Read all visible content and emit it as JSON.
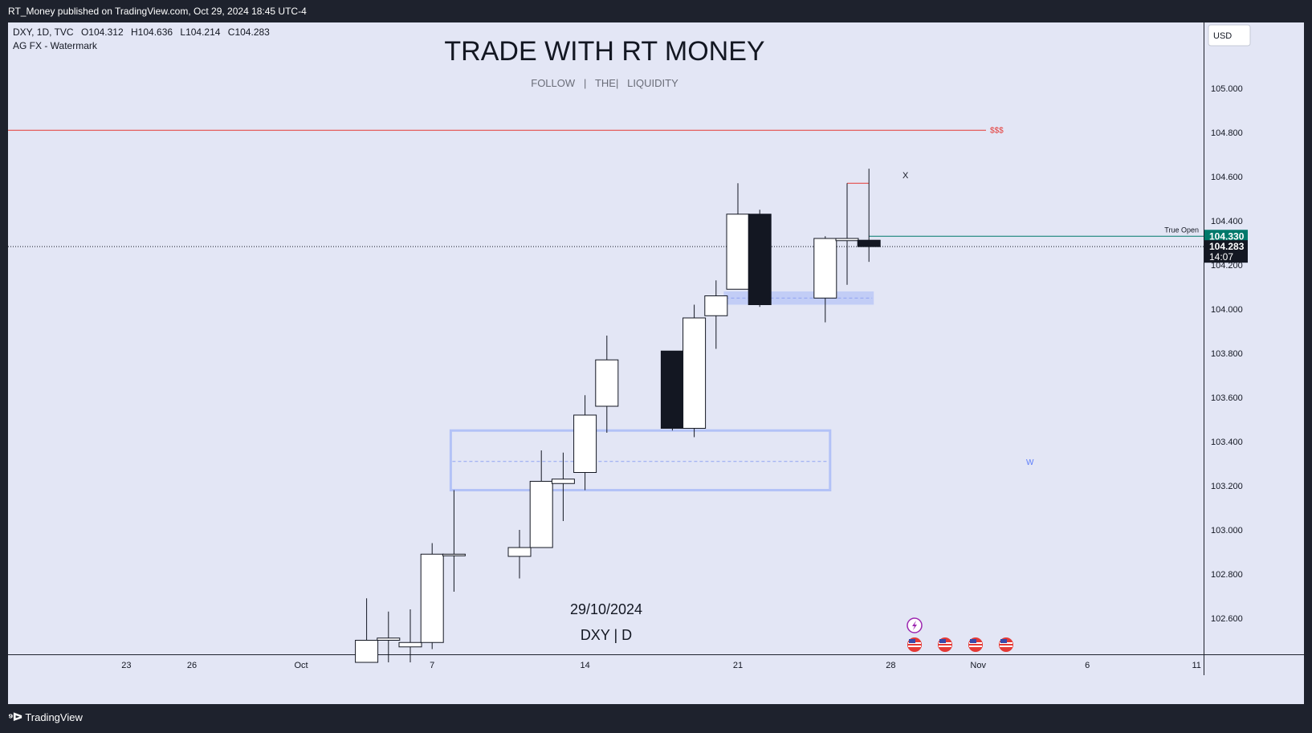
{
  "header": {
    "published": "RT_Money published on TradingView.com, Oct 29, 2024 18:45 UTC-4"
  },
  "legend": {
    "symbol": "DXY, 1D, TVC",
    "o": "O104.312",
    "h": "H104.636",
    "l": "L104.214",
    "c": "C104.283",
    "indicator": "AG FX - Watermark"
  },
  "watermark": {
    "title": "TRADE WITH RT MONEY",
    "subtitle": "FOLLOW   |   THE|   LIQUIDITY",
    "date": "29/10/2024",
    "symbol": "DXY | D"
  },
  "axis": {
    "currency": "USD"
  },
  "labels": {
    "liquidity": "$$$",
    "x_mark": "X",
    "w_mark": "W",
    "true_open": "True Open",
    "true_open_price": "104.330",
    "last_price": "104.283",
    "countdown": "14:07"
  },
  "footer": {
    "brand": "TradingView"
  },
  "colors": {
    "background": "#e3e6f5",
    "frame": "#1e222d",
    "liquidity_line": "#e53935",
    "true_open": "#00796b",
    "zone": "#b3c2f7",
    "bear_candle": "#131722",
    "bull_candle": "#ffffff"
  },
  "chart_data": {
    "type": "candlestick",
    "symbol": "DXY",
    "interval": "1D",
    "price_ticks": [
      102.6,
      102.8,
      103.0,
      103.2,
      103.4,
      103.6,
      103.8,
      104.0,
      104.2,
      104.4,
      104.6,
      104.8,
      105.0
    ],
    "price_tick_labels": [
      "102.600",
      "102.800",
      "103.000",
      "103.200",
      "103.400",
      "103.600",
      "103.800",
      "104.000",
      "104.200",
      "104.400",
      "104.600",
      "104.800",
      "105.000"
    ],
    "time_ticks": [
      {
        "label": "23",
        "day": -8
      },
      {
        "label": "26",
        "day": -5
      },
      {
        "label": "Oct",
        "day": 0
      },
      {
        "label": "7",
        "day": 6
      },
      {
        "label": "14",
        "day": 13
      },
      {
        "label": "21",
        "day": 20
      },
      {
        "label": "28",
        "day": 27
      },
      {
        "label": "Nov",
        "day": 31
      },
      {
        "label": "6",
        "day": 36
      },
      {
        "label": "11",
        "day": 41
      }
    ],
    "candles": [
      {
        "day": 3,
        "o": 102.4,
        "h": 102.69,
        "l": 102.4,
        "c": 102.5
      },
      {
        "day": 4,
        "o": 102.5,
        "h": 102.63,
        "l": 102.4,
        "c": 102.51
      },
      {
        "day": 5,
        "o": 102.47,
        "h": 102.64,
        "l": 102.4,
        "c": 102.49
      },
      {
        "day": 6,
        "o": 102.49,
        "h": 102.94,
        "l": 102.46,
        "c": 102.89
      },
      {
        "day": 7,
        "o": 102.89,
        "h": 103.18,
        "l": 102.72,
        "c": 102.89
      },
      {
        "day": 10,
        "o": 102.88,
        "h": 103.0,
        "l": 102.78,
        "c": 102.92
      },
      {
        "day": 11,
        "o": 102.92,
        "h": 103.36,
        "l": 102.92,
        "c": 103.22
      },
      {
        "day": 12,
        "o": 103.21,
        "h": 103.35,
        "l": 103.04,
        "c": 103.23
      },
      {
        "day": 13,
        "o": 103.26,
        "h": 103.61,
        "l": 103.18,
        "c": 103.52
      },
      {
        "day": 14,
        "o": 103.56,
        "h": 103.88,
        "l": 103.44,
        "c": 103.77
      },
      {
        "day": 17,
        "o": 103.81,
        "h": 103.81,
        "l": 103.45,
        "c": 103.46
      },
      {
        "day": 18,
        "o": 103.46,
        "h": 104.02,
        "l": 103.42,
        "c": 103.96
      },
      {
        "day": 19,
        "o": 103.97,
        "h": 104.13,
        "l": 103.82,
        "c": 104.06
      },
      {
        "day": 20,
        "o": 104.09,
        "h": 104.57,
        "l": 104.09,
        "c": 104.43
      },
      {
        "day": 21,
        "o": 104.43,
        "h": 104.45,
        "l": 104.01,
        "c": 104.02
      },
      {
        "day": 24,
        "o": 104.05,
        "h": 104.33,
        "l": 103.94,
        "c": 104.32
      },
      {
        "day": 25,
        "o": 104.31,
        "h": 104.57,
        "l": 104.11,
        "c": 104.32
      },
      {
        "day": 26,
        "o": 104.312,
        "h": 104.636,
        "l": 104.214,
        "c": 104.283
      }
    ],
    "levels": [
      {
        "name": "liquidity",
        "price": 104.81,
        "label": "$$$"
      },
      {
        "name": "true-open",
        "price": 104.33,
        "label": "True Open"
      },
      {
        "name": "last-price",
        "price": 104.283
      }
    ],
    "zones": [
      {
        "name": "zone-w",
        "day_from": 7,
        "day_to": 24,
        "price_from": 103.18,
        "price_to": 103.45,
        "mid": 103.31
      },
      {
        "name": "zone-small",
        "day_from": 19.5,
        "day_to": 26,
        "price_from": 104.02,
        "price_to": 104.08,
        "mid": 104.05
      }
    ]
  }
}
